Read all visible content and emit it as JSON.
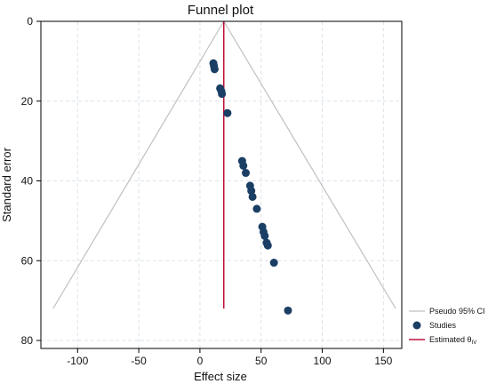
{
  "chart_data": {
    "type": "scatter",
    "title": "Funnel plot",
    "xlabel": "Effect size",
    "ylabel": "Standard error",
    "xlim": [
      -130,
      165
    ],
    "ylim": [
      0,
      82
    ],
    "y_reversed": true,
    "x_ticks": [
      -100,
      -50,
      0,
      50,
      100,
      150
    ],
    "y_ticks": [
      0,
      20,
      40,
      60,
      80
    ],
    "grid": true,
    "legend_position": "right",
    "estimated_theta": 19.5,
    "funnel": {
      "apex": [
        19.5,
        0
      ],
      "left_end": [
        -120,
        72
      ],
      "right_end": [
        160,
        72
      ]
    },
    "points": [
      {
        "x": 11,
        "y": 10.5
      },
      {
        "x": 11.5,
        "y": 11.2
      },
      {
        "x": 12,
        "y": 12
      },
      {
        "x": 16.5,
        "y": 16.8
      },
      {
        "x": 17.5,
        "y": 17.5
      },
      {
        "x": 18,
        "y": 18.2
      },
      {
        "x": 22.5,
        "y": 23
      },
      {
        "x": 34.5,
        "y": 35
      },
      {
        "x": 35.5,
        "y": 36.2
      },
      {
        "x": 37.5,
        "y": 38
      },
      {
        "x": 41,
        "y": 41.2
      },
      {
        "x": 42,
        "y": 42.5
      },
      {
        "x": 43,
        "y": 44
      },
      {
        "x": 46.5,
        "y": 47
      },
      {
        "x": 51,
        "y": 51.5
      },
      {
        "x": 52,
        "y": 52.8
      },
      {
        "x": 53,
        "y": 53.8
      },
      {
        "x": 54.5,
        "y": 55.5
      },
      {
        "x": 55.5,
        "y": 56.2
      },
      {
        "x": 60.5,
        "y": 60.5
      },
      {
        "x": 72,
        "y": 72.5
      }
    ],
    "legend": {
      "ci_label": "Pseudo 95% CI",
      "studies_label": "Studies",
      "estimate_label": "Estimated θ",
      "estimate_subscript": "IV"
    },
    "colors": {
      "ci": "#c0c0c0",
      "points": "#1a3e64",
      "estimate": "#c0103a",
      "grid": "#dde3ea"
    }
  }
}
